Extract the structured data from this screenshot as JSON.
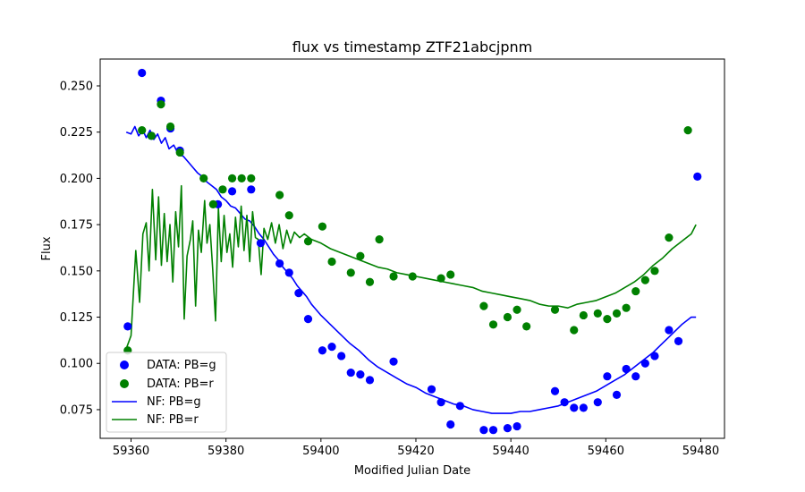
{
  "chart_data": {
    "type": "scatter",
    "title": "flux vs timestamp ZTF21abcjpnm",
    "xlabel": "Modified Julian Date",
    "ylabel": "Flux",
    "xlim": [
      59353.5,
      59485
    ],
    "ylim": [
      0.0595,
      0.2645
    ],
    "xticks": [
      59360,
      59380,
      59400,
      59420,
      59440,
      59460,
      59480
    ],
    "yticks": [
      0.075,
      0.1,
      0.125,
      0.15,
      0.175,
      0.2,
      0.225,
      0.25
    ],
    "xtick_labels": [
      "59360",
      "59380",
      "59400",
      "59420",
      "59440",
      "59460",
      "59480"
    ],
    "ytick_labels": [
      "0.075",
      "0.100",
      "0.125",
      "0.150",
      "0.175",
      "0.200",
      "0.225",
      "0.250"
    ],
    "grid": false,
    "legend_position": "lower-left",
    "series": [
      {
        "name": "DATA: PB=g",
        "kind": "scatter",
        "color": "#0000ff",
        "points": [
          [
            59359.3,
            0.12
          ],
          [
            59362.3,
            0.257
          ],
          [
            59364.3,
            0.223
          ],
          [
            59366.3,
            0.242
          ],
          [
            59368.3,
            0.227
          ],
          [
            59370.3,
            0.215
          ],
          [
            59378.3,
            0.186
          ],
          [
            59381.3,
            0.193
          ],
          [
            59385.3,
            0.194
          ],
          [
            59387.3,
            0.165
          ],
          [
            59391.3,
            0.154
          ],
          [
            59393.3,
            0.149
          ],
          [
            59395.3,
            0.138
          ],
          [
            59397.3,
            0.124
          ],
          [
            59400.3,
            0.107
          ],
          [
            59402.3,
            0.109
          ],
          [
            59404.3,
            0.104
          ],
          [
            59406.3,
            0.095
          ],
          [
            59408.3,
            0.094
          ],
          [
            59410.3,
            0.091
          ],
          [
            59415.3,
            0.101
          ],
          [
            59423.3,
            0.086
          ],
          [
            59425.3,
            0.079
          ],
          [
            59427.3,
            0.067
          ],
          [
            59429.3,
            0.077
          ],
          [
            59434.3,
            0.064
          ],
          [
            59436.3,
            0.064
          ],
          [
            59439.3,
            0.065
          ],
          [
            59441.3,
            0.066
          ],
          [
            59449.3,
            0.085
          ],
          [
            59451.3,
            0.079
          ],
          [
            59453.3,
            0.076
          ],
          [
            59455.3,
            0.076
          ],
          [
            59458.3,
            0.079
          ],
          [
            59460.3,
            0.093
          ],
          [
            59462.3,
            0.083
          ],
          [
            59464.3,
            0.097
          ],
          [
            59466.3,
            0.093
          ],
          [
            59468.3,
            0.1
          ],
          [
            59470.3,
            0.104
          ],
          [
            59473.3,
            0.118
          ],
          [
            59475.3,
            0.112
          ],
          [
            59479.3,
            0.201
          ]
        ]
      },
      {
        "name": "DATA: PB=r",
        "kind": "scatter",
        "color": "#008000",
        "points": [
          [
            59359.3,
            0.107
          ],
          [
            59362.3,
            0.226
          ],
          [
            59364.3,
            0.223
          ],
          [
            59366.3,
            0.24
          ],
          [
            59368.3,
            0.228
          ],
          [
            59370.3,
            0.214
          ],
          [
            59375.3,
            0.2
          ],
          [
            59377.3,
            0.186
          ],
          [
            59379.3,
            0.194
          ],
          [
            59381.3,
            0.2
          ],
          [
            59383.3,
            0.2
          ],
          [
            59385.3,
            0.2
          ],
          [
            59391.3,
            0.191
          ],
          [
            59393.3,
            0.18
          ],
          [
            59397.3,
            0.166
          ],
          [
            59400.3,
            0.174
          ],
          [
            59402.3,
            0.155
          ],
          [
            59406.3,
            0.149
          ],
          [
            59408.3,
            0.158
          ],
          [
            59410.3,
            0.144
          ],
          [
            59412.3,
            0.167
          ],
          [
            59415.3,
            0.147
          ],
          [
            59419.3,
            0.147
          ],
          [
            59425.3,
            0.146
          ],
          [
            59427.3,
            0.148
          ],
          [
            59434.3,
            0.131
          ],
          [
            59436.3,
            0.121
          ],
          [
            59439.3,
            0.125
          ],
          [
            59441.3,
            0.129
          ],
          [
            59443.3,
            0.12
          ],
          [
            59449.3,
            0.129
          ],
          [
            59453.3,
            0.118
          ],
          [
            59455.3,
            0.126
          ],
          [
            59458.3,
            0.127
          ],
          [
            59460.3,
            0.124
          ],
          [
            59462.3,
            0.127
          ],
          [
            59464.3,
            0.13
          ],
          [
            59466.3,
            0.139
          ],
          [
            59468.3,
            0.145
          ],
          [
            59470.3,
            0.15
          ],
          [
            59473.3,
            0.168
          ],
          [
            59477.3,
            0.226
          ]
        ]
      },
      {
        "name": "NF: PB=g",
        "kind": "line",
        "color": "#0000ff",
        "points": [
          [
            59359.0,
            0.225
          ],
          [
            59360.0,
            0.224
          ],
          [
            59360.8,
            0.228
          ],
          [
            59361.6,
            0.223
          ],
          [
            59362.5,
            0.226
          ],
          [
            59363.2,
            0.222
          ],
          [
            59364.0,
            0.226
          ],
          [
            59364.8,
            0.221
          ],
          [
            59365.6,
            0.224
          ],
          [
            59366.4,
            0.219
          ],
          [
            59367.2,
            0.222
          ],
          [
            59368.0,
            0.216
          ],
          [
            59369.0,
            0.218
          ],
          [
            59370.0,
            0.213
          ],
          [
            59371.0,
            0.212
          ],
          [
            59372.0,
            0.209
          ],
          [
            59373.0,
            0.206
          ],
          [
            59374.0,
            0.203
          ],
          [
            59375.0,
            0.201
          ],
          [
            59376.0,
            0.198
          ],
          [
            59377.0,
            0.196
          ],
          [
            59378.0,
            0.194
          ],
          [
            59379.0,
            0.19
          ],
          [
            59380.0,
            0.188
          ],
          [
            59381.0,
            0.185
          ],
          [
            59382.0,
            0.184
          ],
          [
            59383.0,
            0.181
          ],
          [
            59384.0,
            0.178
          ],
          [
            59385.0,
            0.177
          ],
          [
            59386.0,
            0.174
          ],
          [
            59387.0,
            0.17
          ],
          [
            59388.0,
            0.167
          ],
          [
            59389.0,
            0.163
          ],
          [
            59390.0,
            0.159
          ],
          [
            59391.0,
            0.156
          ],
          [
            59392.0,
            0.152
          ],
          [
            59393.0,
            0.149
          ],
          [
            59394.0,
            0.146
          ],
          [
            59395.0,
            0.142
          ],
          [
            59396.0,
            0.139
          ],
          [
            59397.0,
            0.136
          ],
          [
            59398.0,
            0.132
          ],
          [
            59399.0,
            0.129
          ],
          [
            59400.0,
            0.126
          ],
          [
            59402.0,
            0.121
          ],
          [
            59404.0,
            0.116
          ],
          [
            59406.0,
            0.111
          ],
          [
            59408.0,
            0.107
          ],
          [
            59410.0,
            0.102
          ],
          [
            59412.0,
            0.098
          ],
          [
            59414.0,
            0.095
          ],
          [
            59416.0,
            0.092
          ],
          [
            59418.0,
            0.089
          ],
          [
            59420.0,
            0.087
          ],
          [
            59422.0,
            0.084
          ],
          [
            59424.0,
            0.082
          ],
          [
            59426.0,
            0.08
          ],
          [
            59428.0,
            0.078
          ],
          [
            59430.0,
            0.077
          ],
          [
            59432.0,
            0.075
          ],
          [
            59434.0,
            0.074
          ],
          [
            59436.0,
            0.073
          ],
          [
            59438.0,
            0.073
          ],
          [
            59440.0,
            0.073
          ],
          [
            59442.0,
            0.074
          ],
          [
            59444.0,
            0.074
          ],
          [
            59446.0,
            0.075
          ],
          [
            59448.0,
            0.076
          ],
          [
            59450.0,
            0.077
          ],
          [
            59452.0,
            0.079
          ],
          [
            59454.0,
            0.081
          ],
          [
            59456.0,
            0.083
          ],
          [
            59458.0,
            0.085
          ],
          [
            59460.0,
            0.088
          ],
          [
            59462.0,
            0.091
          ],
          [
            59464.0,
            0.094
          ],
          [
            59466.0,
            0.098
          ],
          [
            59468.0,
            0.102
          ],
          [
            59470.0,
            0.106
          ],
          [
            59472.0,
            0.111
          ],
          [
            59474.0,
            0.116
          ],
          [
            59476.0,
            0.121
          ],
          [
            59478.0,
            0.125
          ],
          [
            59479.0,
            0.125
          ]
        ]
      },
      {
        "name": "NF: PB=r",
        "kind": "line",
        "color": "#008000",
        "points": [
          [
            59359.0,
            0.108
          ],
          [
            59360.0,
            0.115
          ],
          [
            59361.0,
            0.161
          ],
          [
            59361.8,
            0.133
          ],
          [
            59362.5,
            0.17
          ],
          [
            59363.2,
            0.176
          ],
          [
            59363.8,
            0.15
          ],
          [
            59364.5,
            0.194
          ],
          [
            59365.2,
            0.156
          ],
          [
            59365.8,
            0.19
          ],
          [
            59366.4,
            0.153
          ],
          [
            59367.0,
            0.181
          ],
          [
            59367.6,
            0.155
          ],
          [
            59368.2,
            0.175
          ],
          [
            59368.8,
            0.144
          ],
          [
            59369.4,
            0.182
          ],
          [
            59370.0,
            0.163
          ],
          [
            59370.6,
            0.196
          ],
          [
            59371.2,
            0.124
          ],
          [
            59371.8,
            0.158
          ],
          [
            59372.5,
            0.167
          ],
          [
            59373.0,
            0.177
          ],
          [
            59373.6,
            0.131
          ],
          [
            59374.2,
            0.172
          ],
          [
            59374.8,
            0.16
          ],
          [
            59375.5,
            0.188
          ],
          [
            59376.0,
            0.165
          ],
          [
            59376.6,
            0.175
          ],
          [
            59377.2,
            0.151
          ],
          [
            59377.8,
            0.123
          ],
          [
            59378.4,
            0.184
          ],
          [
            59379.0,
            0.155
          ],
          [
            59379.6,
            0.18
          ],
          [
            59380.2,
            0.16
          ],
          [
            59380.8,
            0.17
          ],
          [
            59381.4,
            0.152
          ],
          [
            59382.0,
            0.179
          ],
          [
            59382.6,
            0.163
          ],
          [
            59383.2,
            0.185
          ],
          [
            59383.8,
            0.161
          ],
          [
            59384.4,
            0.18
          ],
          [
            59385.0,
            0.155
          ],
          [
            59385.6,
            0.182
          ],
          [
            59386.2,
            0.168
          ],
          [
            59386.8,
            0.167
          ],
          [
            59387.4,
            0.148
          ],
          [
            59388.0,
            0.173
          ],
          [
            59388.8,
            0.167
          ],
          [
            59389.6,
            0.176
          ],
          [
            59390.4,
            0.165
          ],
          [
            59391.2,
            0.175
          ],
          [
            59392.0,
            0.162
          ],
          [
            59392.8,
            0.172
          ],
          [
            59393.6,
            0.165
          ],
          [
            59394.4,
            0.171
          ],
          [
            59395.5,
            0.168
          ],
          [
            59396.5,
            0.17
          ],
          [
            59398.0,
            0.167
          ],
          [
            59400.0,
            0.165
          ],
          [
            59402.0,
            0.162
          ],
          [
            59404.0,
            0.16
          ],
          [
            59406.0,
            0.158
          ],
          [
            59408.0,
            0.156
          ],
          [
            59410.0,
            0.154
          ],
          [
            59412.0,
            0.152
          ],
          [
            59414.0,
            0.151
          ],
          [
            59416.0,
            0.149
          ],
          [
            59418.0,
            0.148
          ],
          [
            59420.0,
            0.147
          ],
          [
            59422.0,
            0.146
          ],
          [
            59424.0,
            0.145
          ],
          [
            59426.0,
            0.144
          ],
          [
            59428.0,
            0.143
          ],
          [
            59430.0,
            0.142
          ],
          [
            59432.0,
            0.141
          ],
          [
            59434.0,
            0.139
          ],
          [
            59436.0,
            0.138
          ],
          [
            59438.0,
            0.137
          ],
          [
            59440.0,
            0.136
          ],
          [
            59442.0,
            0.135
          ],
          [
            59444.0,
            0.134
          ],
          [
            59446.0,
            0.132
          ],
          [
            59448.0,
            0.131
          ],
          [
            59450.0,
            0.131
          ],
          [
            59452.0,
            0.13
          ],
          [
            59454.0,
            0.132
          ],
          [
            59456.0,
            0.133
          ],
          [
            59458.0,
            0.134
          ],
          [
            59460.0,
            0.136
          ],
          [
            59462.0,
            0.138
          ],
          [
            59464.0,
            0.141
          ],
          [
            59466.0,
            0.144
          ],
          [
            59468.0,
            0.148
          ],
          [
            59470.0,
            0.153
          ],
          [
            59472.0,
            0.157
          ],
          [
            59474.0,
            0.162
          ],
          [
            59476.0,
            0.166
          ],
          [
            59478.0,
            0.17
          ],
          [
            59479.0,
            0.175
          ]
        ]
      }
    ]
  }
}
